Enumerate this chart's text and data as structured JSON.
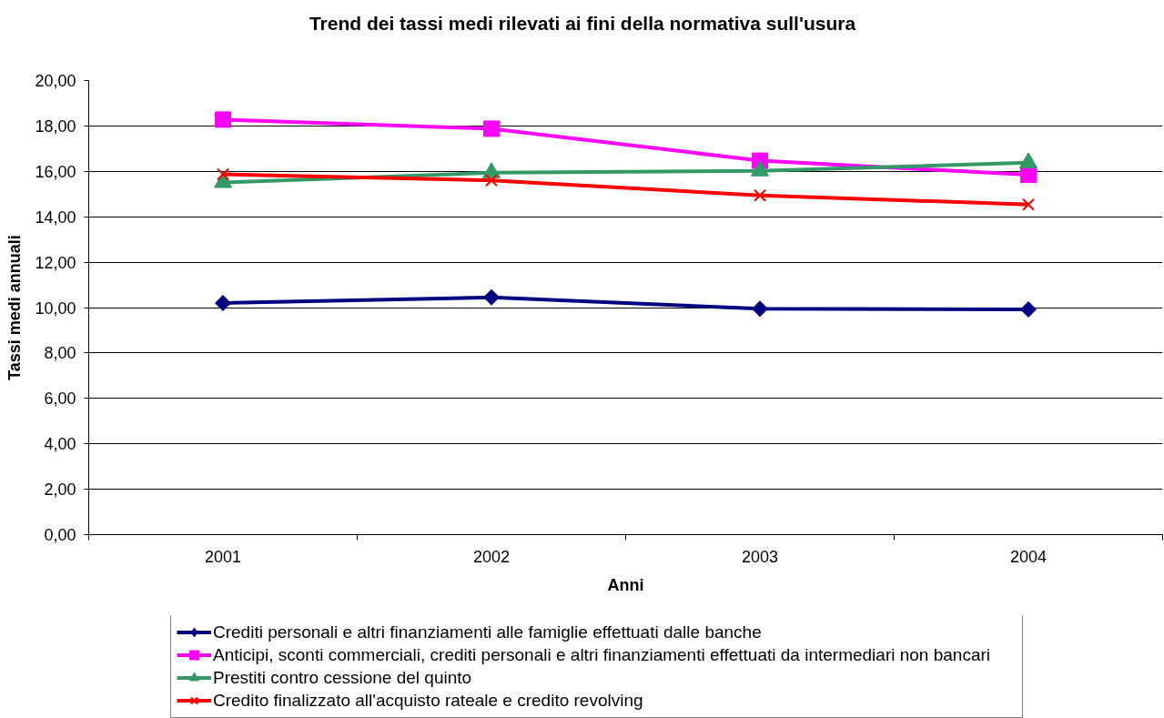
{
  "chart_data": {
    "type": "line",
    "title": "Trend dei tassi medi rilevati ai fini della normativa sull'usura",
    "xlabel": "Anni",
    "ylabel": "Tassi medi annuali",
    "categories": [
      "2001",
      "2002",
      "2003",
      "2004"
    ],
    "series": [
      {
        "name": "Crediti personali e altri finanziamenti alle famiglie effettuati dalle banche",
        "color": "#000080",
        "marker": "diamond",
        "values": [
          10.2,
          10.45,
          9.95,
          9.92
        ]
      },
      {
        "name": "Anticipi, sconti commerciali, crediti personali e altri finanziamenti effettuati da intermediari non bancari",
        "color": "#ff00ff",
        "marker": "square",
        "values": [
          18.28,
          17.88,
          16.47,
          15.85
        ]
      },
      {
        "name": "Prestiti contro cessione del quinto",
        "color": "#339966",
        "marker": "triangle",
        "values": [
          15.51,
          15.94,
          16.02,
          16.38
        ]
      },
      {
        "name": "Credito finalizzato all'acquisto rateale e credito revolving",
        "color": "#ff0000",
        "marker": "cross",
        "values": [
          15.87,
          15.6,
          14.94,
          14.54
        ]
      }
    ],
    "ylim": [
      0,
      20
    ],
    "yticks": [
      {
        "value": 0,
        "label": "0,00"
      },
      {
        "value": 2,
        "label": "2,00"
      },
      {
        "value": 4,
        "label": "4,00"
      },
      {
        "value": 6,
        "label": "6,00"
      },
      {
        "value": 8,
        "label": "8,00"
      },
      {
        "value": 10,
        "label": "10,00"
      },
      {
        "value": 12,
        "label": "12,00"
      },
      {
        "value": 14,
        "label": "14,00"
      },
      {
        "value": 16,
        "label": "16,00"
      },
      {
        "value": 18,
        "label": "18,00"
      },
      {
        "value": 20,
        "label": "20,00"
      }
    ],
    "grid": "y",
    "legend": "bottom"
  }
}
